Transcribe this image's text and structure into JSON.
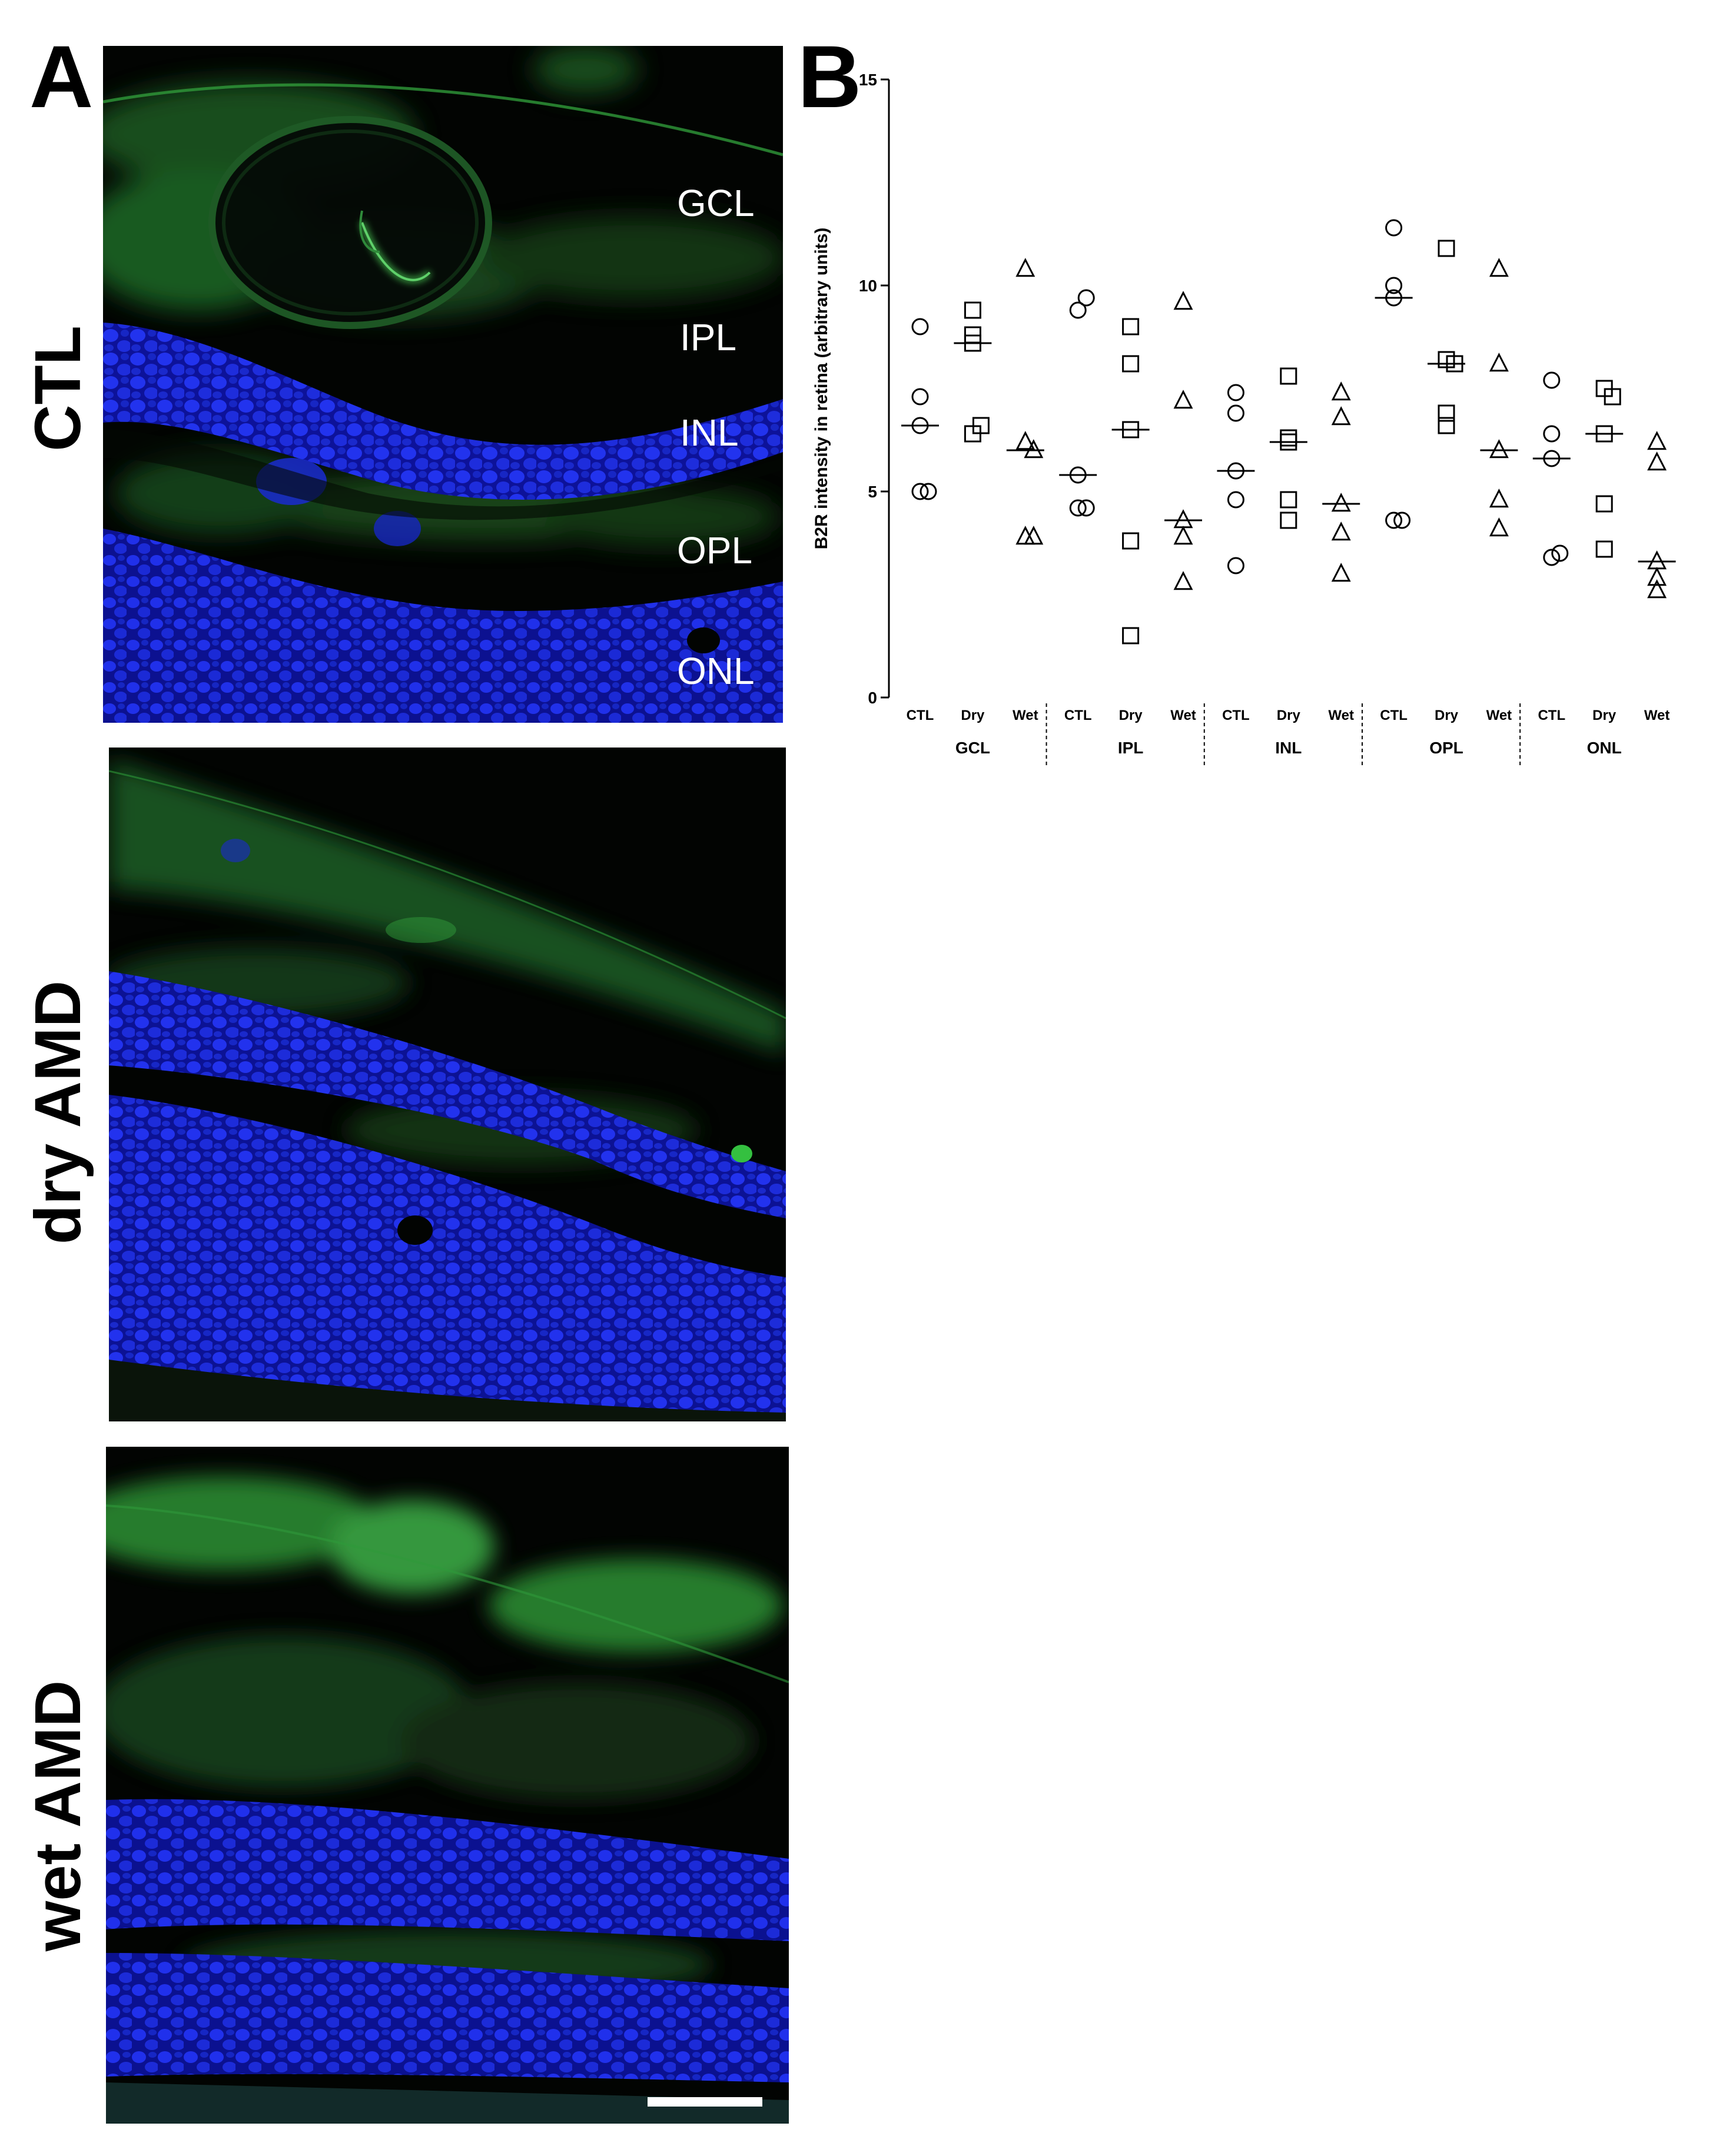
{
  "panel_a": {
    "letter": "A",
    "rows": [
      {
        "label": "CTL"
      },
      {
        "label": "dry AMD"
      },
      {
        "label": "wet AMD"
      }
    ],
    "layer_labels": [
      "GCL",
      "IPL",
      "INL",
      "OPL",
      "ONL"
    ],
    "colors": {
      "nuclei": "#1f2ee0",
      "stain": "#2fa83a",
      "background": "#000000",
      "scale_bar": "#ffffff"
    }
  },
  "panel_b": {
    "letter": "B"
  },
  "chart_data": {
    "type": "scatter",
    "ylabel": "B2R intensity in retina (arbitrary units)",
    "xlabel": "",
    "ylim": [
      0,
      15
    ],
    "yticks": [
      0,
      5,
      10,
      15
    ],
    "group_labels": [
      "GCL",
      "IPL",
      "INL",
      "OPL",
      "ONL"
    ],
    "category_labels": [
      "CTL",
      "Dry",
      "Wet"
    ],
    "grid": false,
    "legend": "none",
    "groups": [
      {
        "name": "GCL",
        "series": [
          {
            "category": "CTL",
            "marker": "circle",
            "values": [
              9.0,
              7.3,
              6.6,
              5.0,
              5.0
            ],
            "median": 6.6
          },
          {
            "category": "Dry",
            "marker": "square",
            "values": [
              8.8,
              9.4,
              8.6,
              6.4,
              6.6
            ],
            "median": 8.6
          },
          {
            "category": "Wet",
            "marker": "triangle",
            "values": [
              10.4,
              6.2,
              6.0,
              3.9,
              3.9
            ],
            "median": 6.0
          }
        ]
      },
      {
        "name": "IPL",
        "series": [
          {
            "category": "CTL",
            "marker": "circle",
            "values": [
              9.4,
              9.7,
              5.4,
              4.6,
              4.6
            ],
            "median": 5.4
          },
          {
            "category": "Dry",
            "marker": "square",
            "values": [
              9.0,
              8.1,
              6.5,
              3.8,
              1.5
            ],
            "median": 6.5
          },
          {
            "category": "Wet",
            "marker": "triangle",
            "values": [
              9.6,
              7.2,
              4.3,
              3.9,
              2.8
            ],
            "median": 4.3
          }
        ]
      },
      {
        "name": "INL",
        "series": [
          {
            "category": "CTL",
            "marker": "circle",
            "values": [
              7.4,
              6.9,
              5.5,
              4.8,
              3.2
            ],
            "median": 5.5
          },
          {
            "category": "Dry",
            "marker": "square",
            "values": [
              7.8,
              6.3,
              6.2,
              4.8,
              4.3
            ],
            "median": 6.2
          },
          {
            "category": "Wet",
            "marker": "triangle",
            "values": [
              7.4,
              6.8,
              4.7,
              4.0,
              3.0
            ],
            "median": 4.7
          }
        ]
      },
      {
        "name": "OPL",
        "series": [
          {
            "category": "CTL",
            "marker": "circle",
            "values": [
              10.0,
              11.4,
              9.7,
              4.3,
              4.3
            ],
            "median": 9.7
          },
          {
            "category": "Dry",
            "marker": "square",
            "values": [
              10.9,
              8.2,
              8.1,
              6.9,
              6.6
            ],
            "median": 8.1
          },
          {
            "category": "Wet",
            "marker": "triangle",
            "values": [
              10.4,
              8.1,
              6.0,
              4.8,
              4.1
            ],
            "median": 6.0
          }
        ]
      },
      {
        "name": "ONL",
        "series": [
          {
            "category": "CTL",
            "marker": "circle",
            "values": [
              7.7,
              6.4,
              5.8,
              3.4,
              3.5
            ],
            "median": 5.8
          },
          {
            "category": "Dry",
            "marker": "square",
            "values": [
              7.5,
              7.3,
              6.4,
              4.7,
              3.6
            ],
            "median": 6.4
          },
          {
            "category": "Wet",
            "marker": "triangle",
            "values": [
              6.2,
              5.7,
              3.3,
              2.9,
              2.6
            ],
            "median": 3.3
          }
        ]
      }
    ]
  }
}
